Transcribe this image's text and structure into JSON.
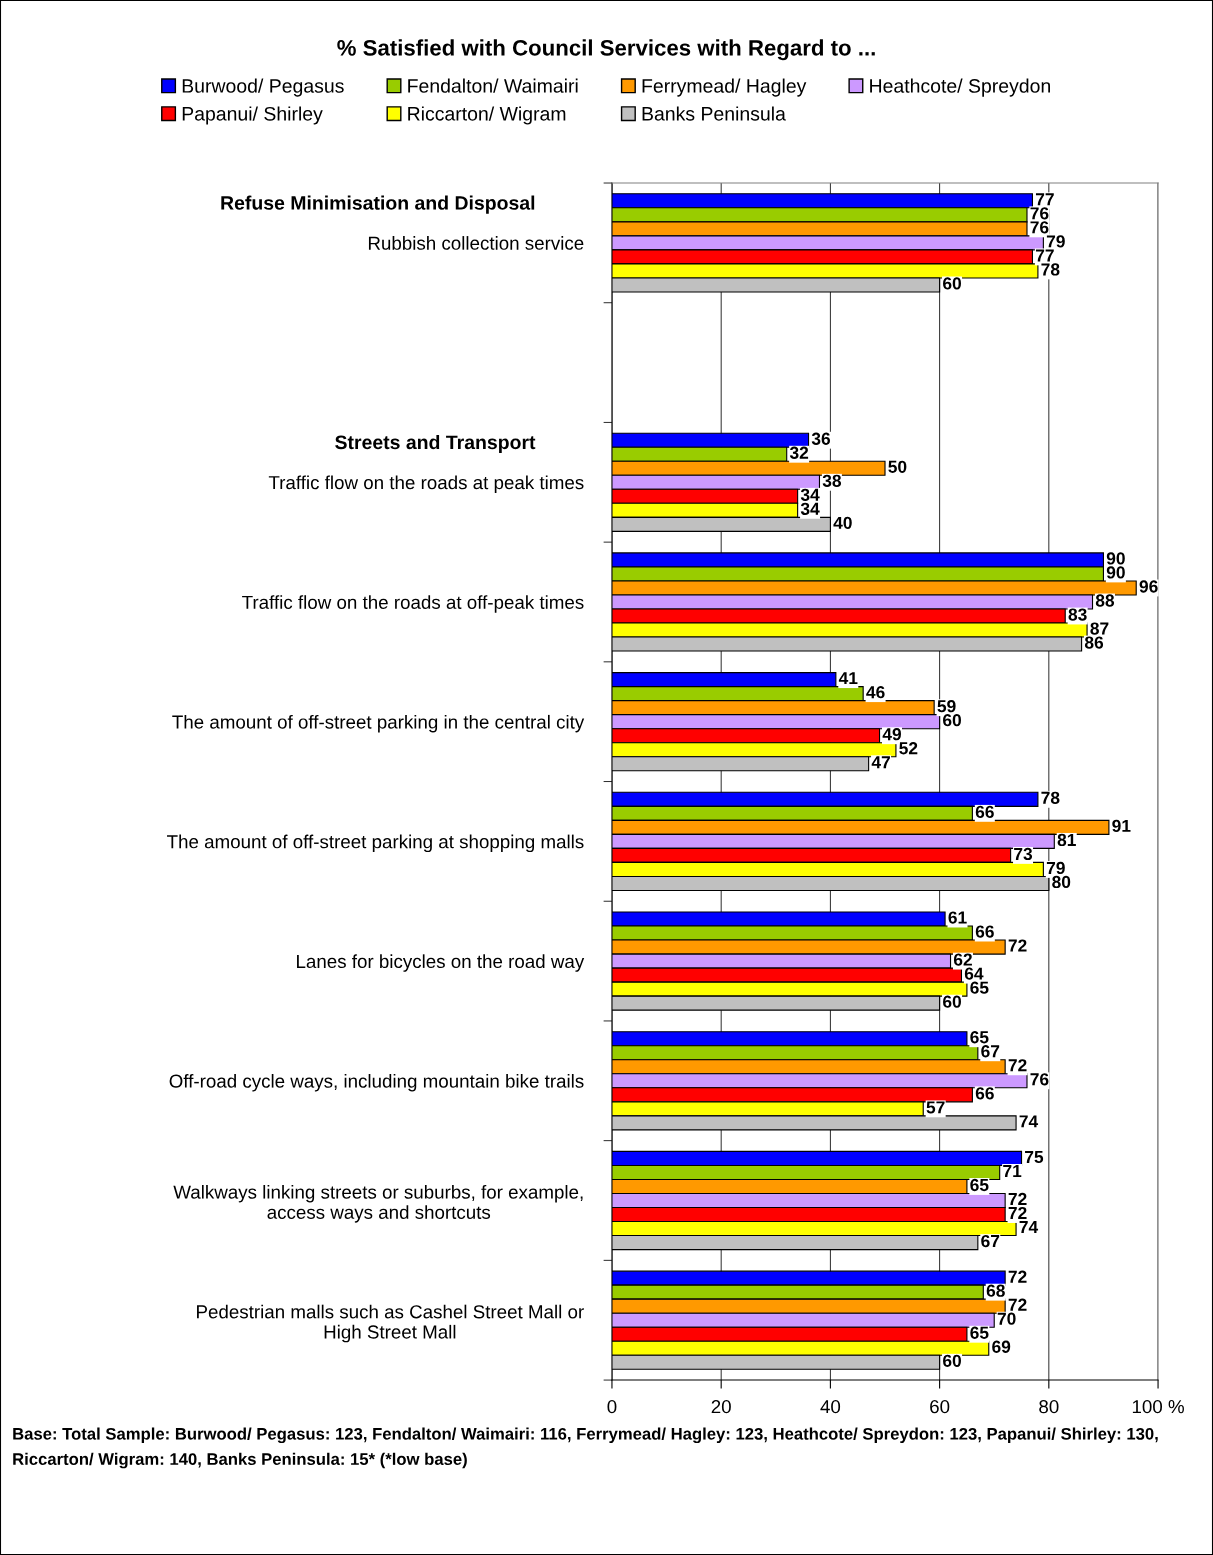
{
  "chart_data": {
    "type": "bar",
    "orientation": "horizontal",
    "title": "% Satisfied with Council Services with Regard to ...",
    "categories": [
      "Rubbish collection service",
      null,
      "Traffic flow on the roads at peak times",
      "Traffic flow on the roads at off-peak times",
      "The amount of off-street parking in the central city",
      "The amount of off-street parking at shopping malls",
      "Lanes for bicycles on the road way",
      "Off-road cycle ways, including mountain bike trails",
      "Walkways linking streets or suburbs, for example,\naccess ways and shortcuts",
      "Pedestrian malls such as Cashel Street Mall or\nHigh Street Mall"
    ],
    "series": [
      {
        "name": "Burwood/ Pegasus",
        "color": "#0000ff",
        "values": [
          77,
          null,
          36,
          90,
          41,
          78,
          61,
          65,
          75,
          72
        ]
      },
      {
        "name": "Fendalton/ Waimairi",
        "color": "#99cc00",
        "values": [
          76,
          null,
          32,
          90,
          46,
          66,
          66,
          67,
          71,
          68
        ]
      },
      {
        "name": "Ferrymead/ Hagley",
        "color": "#ff9900",
        "values": [
          76,
          null,
          50,
          96,
          59,
          91,
          72,
          72,
          65,
          72
        ]
      },
      {
        "name": "Heathcote/ Spreydon",
        "color": "#cc99ff",
        "values": [
          79,
          null,
          38,
          88,
          60,
          81,
          62,
          76,
          72,
          70
        ]
      },
      {
        "name": "Papanui/ Shirley",
        "color": "#ff0000",
        "values": [
          77,
          null,
          34,
          83,
          49,
          73,
          64,
          66,
          72,
          65
        ]
      },
      {
        "name": "Riccarton/ Wigram",
        "color": "#ffff00",
        "values": [
          78,
          null,
          34,
          87,
          52,
          79,
          65,
          57,
          74,
          69
        ]
      },
      {
        "name": "Banks Peninsula",
        "color": "#c0c0c0",
        "values": [
          60,
          null,
          40,
          86,
          47,
          80,
          60,
          74,
          67,
          60
        ]
      }
    ],
    "xlim": [
      0,
      100
    ],
    "xticks": [
      0,
      20,
      40,
      60,
      80,
      {
        "value": 100,
        "label": "100 %"
      }
    ],
    "grid": "x",
    "legend": "top",
    "data_labels": true,
    "annotations": [
      "Refuse Minimisation and Disposal",
      "Streets and Transport",
      "Base: Total Sample: Burwood/ Pegasus: 123, Fendalton/ Waimairi: 116, Ferrymead/ Hagley: 123, Heathcote/ Spreydon: 123, Papanui/ Shirley: 130, Riccarton/ Wigram: 140, Banks Peninsula: 15* (*low base)"
    ]
  }
}
